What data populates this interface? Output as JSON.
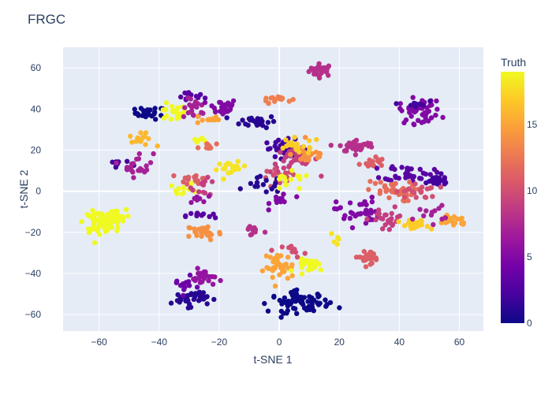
{
  "chart_data": {
    "type": "scatter",
    "title": "FRGC",
    "xlabel": "t-SNE 1",
    "ylabel": "t-SNE 2",
    "xlim": [
      -72,
      68
    ],
    "ylim": [
      -68,
      70
    ],
    "xticks": [
      -60,
      -40,
      -20,
      0,
      20,
      40,
      60
    ],
    "yticks": [
      -60,
      -40,
      -20,
      0,
      20,
      40,
      60
    ],
    "grid": true,
    "plot_background": "#E5ECF6",
    "colorbar": {
      "title": "Truth",
      "range": [
        0,
        19
      ],
      "ticks": [
        0,
        5,
        10,
        15
      ],
      "colorscale": [
        "#0d0887",
        "#46039f",
        "#7201a8",
        "#9c179e",
        "#bd3786",
        "#d8576b",
        "#ed7953",
        "#fb9f3a",
        "#fdca26",
        "#f0f921"
      ]
    },
    "clusters": [
      {
        "x": 14,
        "y": 59,
        "sx": 2.0,
        "sy": 1.5,
        "n": 30,
        "value": 8
      },
      {
        "x": -43,
        "y": 38,
        "sx": 2.5,
        "sy": 1.5,
        "n": 25,
        "value": 0
      },
      {
        "x": -36,
        "y": 38,
        "sx": 2.5,
        "sy": 2.0,
        "n": 20,
        "value": 19
      },
      {
        "x": -30,
        "y": 46,
        "sx": 2.5,
        "sy": 1.2,
        "n": 15,
        "value": 3
      },
      {
        "x": -28,
        "y": 40,
        "sx": 2.0,
        "sy": 2.5,
        "n": 20,
        "value": 7
      },
      {
        "x": -24,
        "y": 35,
        "sx": 2.0,
        "sy": 1.2,
        "n": 12,
        "value": 15
      },
      {
        "x": -19,
        "y": 41,
        "sx": 2.5,
        "sy": 2.0,
        "n": 28,
        "value": 5
      },
      {
        "x": -7,
        "y": 34,
        "sx": 3.0,
        "sy": 1.5,
        "n": 28,
        "value": 1
      },
      {
        "x": -1,
        "y": 45,
        "sx": 2.5,
        "sy": 1.0,
        "n": 15,
        "value": 13
      },
      {
        "x": -46,
        "y": 25,
        "sx": 2.0,
        "sy": 1.5,
        "n": 15,
        "value": 16
      },
      {
        "x": -27,
        "y": 25,
        "sx": 1.2,
        "sy": 1.2,
        "n": 5,
        "value": 19
      },
      {
        "x": -24,
        "y": 22,
        "sx": 1.5,
        "sy": 1.2,
        "n": 8,
        "value": 12
      },
      {
        "x": -54,
        "y": 13,
        "sx": 2.0,
        "sy": 1.5,
        "n": 10,
        "value": 2
      },
      {
        "x": -47,
        "y": 13,
        "sx": 2.5,
        "sy": 3.0,
        "n": 22,
        "value": 7
      },
      {
        "x": -16,
        "y": 11,
        "sx": 2.5,
        "sy": 1.5,
        "n": 18,
        "value": 18
      },
      {
        "x": 2,
        "y": 21,
        "sx": 3.5,
        "sy": 2.0,
        "n": 40,
        "value": 2
      },
      {
        "x": 5,
        "y": 15,
        "sx": 4.0,
        "sy": 3.0,
        "n": 35,
        "value": 9
      },
      {
        "x": 10,
        "y": 18,
        "sx": 3.0,
        "sy": 2.5,
        "n": 25,
        "value": 14
      },
      {
        "x": 6,
        "y": 22,
        "sx": 4.0,
        "sy": 2.0,
        "n": 20,
        "value": 17
      },
      {
        "x": 0,
        "y": 6,
        "sx": 3.0,
        "sy": 2.5,
        "n": 20,
        "value": 10
      },
      {
        "x": -5,
        "y": 3,
        "sx": 3.0,
        "sy": 2.0,
        "n": 15,
        "value": 1
      },
      {
        "x": 3,
        "y": 4,
        "sx": 4.0,
        "sy": 2.5,
        "n": 15,
        "value": 19
      },
      {
        "x": 1,
        "y": -4,
        "sx": 2.0,
        "sy": 2.0,
        "n": 12,
        "value": 5
      },
      {
        "x": -28,
        "y": 6,
        "sx": 2.5,
        "sy": 1.5,
        "n": 15,
        "value": 11
      },
      {
        "x": -32,
        "y": 1,
        "sx": 2.5,
        "sy": 1.5,
        "n": 12,
        "value": 19
      },
      {
        "x": -25,
        "y": 2,
        "sx": 2.0,
        "sy": 2.0,
        "n": 12,
        "value": 9
      },
      {
        "x": -26,
        "y": -3,
        "sx": 2.0,
        "sy": 1.2,
        "n": 8,
        "value": 6
      },
      {
        "x": -60,
        "y": -15,
        "sx": 2.5,
        "sy": 2.5,
        "n": 60,
        "value": 19
      },
      {
        "x": -55,
        "y": -13,
        "sx": 2.0,
        "sy": 2.0,
        "n": 30,
        "value": 19
      },
      {
        "x": -26,
        "y": -12,
        "sx": 2.5,
        "sy": 1.0,
        "n": 12,
        "value": 3
      },
      {
        "x": -25,
        "y": -20,
        "sx": 3.0,
        "sy": 2.0,
        "n": 35,
        "value": 14
      },
      {
        "x": -9,
        "y": -19,
        "sx": 2.0,
        "sy": 1.5,
        "n": 10,
        "value": 8
      },
      {
        "x": 26,
        "y": 22,
        "sx": 3.0,
        "sy": 1.5,
        "n": 40,
        "value": 8
      },
      {
        "x": 31,
        "y": 14,
        "sx": 2.0,
        "sy": 1.5,
        "n": 15,
        "value": 11
      },
      {
        "x": 43,
        "y": 9,
        "sx": 4.0,
        "sy": 2.0,
        "n": 35,
        "value": 3
      },
      {
        "x": 52,
        "y": 5,
        "sx": 3.0,
        "sy": 1.5,
        "n": 20,
        "value": 2
      },
      {
        "x": 37,
        "y": 0,
        "sx": 4.0,
        "sy": 2.5,
        "n": 35,
        "value": 12
      },
      {
        "x": 46,
        "y": 0,
        "sx": 3.5,
        "sy": 2.0,
        "n": 20,
        "value": 10
      },
      {
        "x": 26,
        "y": -10,
        "sx": 3.5,
        "sy": 3.5,
        "n": 35,
        "value": 5
      },
      {
        "x": 36,
        "y": -14,
        "sx": 3.0,
        "sy": 3.0,
        "n": 25,
        "value": 9
      },
      {
        "x": 45,
        "y": -17,
        "sx": 2.5,
        "sy": 1.5,
        "n": 20,
        "value": 17
      },
      {
        "x": 58,
        "y": -14,
        "sx": 2.5,
        "sy": 1.5,
        "n": 25,
        "value": 15
      },
      {
        "x": 50,
        "y": -11,
        "sx": 2.5,
        "sy": 2.0,
        "n": 12,
        "value": 7
      },
      {
        "x": 47,
        "y": 39,
        "sx": 3.5,
        "sy": 3.0,
        "n": 45,
        "value": 5
      },
      {
        "x": 45,
        "y": 42,
        "sx": 2.0,
        "sy": 1.5,
        "n": 10,
        "value": 2
      },
      {
        "x": 30,
        "y": -32,
        "sx": 2.5,
        "sy": 1.5,
        "n": 25,
        "value": 11
      },
      {
        "x": 19,
        "y": -24,
        "sx": 1.0,
        "sy": 1.5,
        "n": 5,
        "value": 18
      },
      {
        "x": 0,
        "y": -37,
        "sx": 2.5,
        "sy": 3.5,
        "n": 35,
        "value": 15
      },
      {
        "x": 11,
        "y": -36,
        "sx": 2.5,
        "sy": 1.5,
        "n": 25,
        "value": 19
      },
      {
        "x": 5,
        "y": -29,
        "sx": 2.0,
        "sy": 1.5,
        "n": 10,
        "value": 10
      },
      {
        "x": 7,
        "y": -54,
        "sx": 5.0,
        "sy": 2.5,
        "n": 70,
        "value": 0
      },
      {
        "x": -30,
        "y": -52,
        "sx": 3.0,
        "sy": 2.0,
        "n": 40,
        "value": 1
      },
      {
        "x": -25,
        "y": -42,
        "sx": 2.0,
        "sy": 2.0,
        "n": 25,
        "value": 6
      },
      {
        "x": -32,
        "y": -46,
        "sx": 2.0,
        "sy": 2.0,
        "n": 12,
        "value": 4
      }
    ]
  }
}
